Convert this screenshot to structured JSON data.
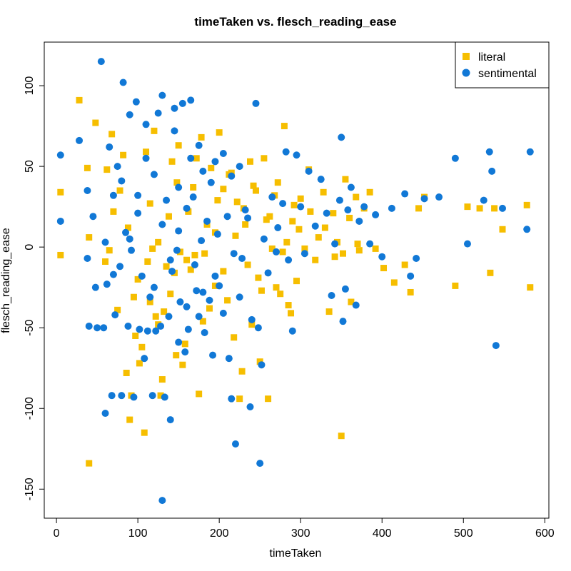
{
  "chart_data": {
    "type": "scatter",
    "title": "timeTaken vs. flesch_reading_ease",
    "xlabel": "timeTaken",
    "ylabel": "flesch_reading_ease",
    "xlim": [
      -15,
      605
    ],
    "ylim": [
      -168,
      127
    ],
    "xticks": [
      0,
      100,
      200,
      300,
      400,
      500,
      600
    ],
    "yticks": [
      -150,
      -100,
      -50,
      0,
      50,
      100
    ],
    "grid": false,
    "legend_position": "top-right",
    "series": [
      {
        "name": "literal",
        "marker": "square",
        "color": "#f6be00",
        "points": [
          [
            5,
            -5
          ],
          [
            5,
            34
          ],
          [
            28,
            91
          ],
          [
            38,
            49
          ],
          [
            40,
            -134
          ],
          [
            40,
            6
          ],
          [
            48,
            77
          ],
          [
            62,
            48
          ],
          [
            65,
            -2
          ],
          [
            68,
            70
          ],
          [
            70,
            22
          ],
          [
            78,
            35
          ],
          [
            82,
            57
          ],
          [
            86,
            -78
          ],
          [
            88,
            12
          ],
          [
            90,
            -107
          ],
          [
            95,
            -31
          ],
          [
            97,
            -55
          ],
          [
            100,
            -20
          ],
          [
            102,
            -72
          ],
          [
            108,
            -115
          ],
          [
            110,
            59
          ],
          [
            112,
            -9
          ],
          [
            115,
            27
          ],
          [
            118,
            -1
          ],
          [
            120,
            72
          ],
          [
            122,
            -43
          ],
          [
            125,
            3
          ],
          [
            128,
            -92
          ],
          [
            130,
            -82
          ],
          [
            135,
            -12
          ],
          [
            138,
            19
          ],
          [
            140,
            -29
          ],
          [
            142,
            53
          ],
          [
            145,
            -16
          ],
          [
            148,
            40
          ],
          [
            150,
            63
          ],
          [
            152,
            -3
          ],
          [
            155,
            -73
          ],
          [
            158,
            -60
          ],
          [
            162,
            22
          ],
          [
            165,
            -14
          ],
          [
            168,
            37
          ],
          [
            170,
            -5
          ],
          [
            172,
            55
          ],
          [
            175,
            -91
          ],
          [
            178,
            68
          ],
          [
            180,
            -46
          ],
          [
            185,
            14
          ],
          [
            188,
            -38
          ],
          [
            190,
            49
          ],
          [
            195,
            -24
          ],
          [
            198,
            29
          ],
          [
            200,
            71
          ],
          [
            205,
            -15
          ],
          [
            210,
            -33
          ],
          [
            215,
            46
          ],
          [
            218,
            -56
          ],
          [
            220,
            7
          ],
          [
            225,
            -94
          ],
          [
            228,
            -77
          ],
          [
            230,
            24
          ],
          [
            235,
            -11
          ],
          [
            238,
            53
          ],
          [
            240,
            -48
          ],
          [
            245,
            35
          ],
          [
            250,
            -71
          ],
          [
            252,
            -27
          ],
          [
            255,
            55
          ],
          [
            260,
            -94
          ],
          [
            262,
            19
          ],
          [
            265,
            -1
          ],
          [
            270,
            -25
          ],
          [
            272,
            40
          ],
          [
            275,
            -29
          ],
          [
            280,
            75
          ],
          [
            283,
            3
          ],
          [
            285,
            -36
          ],
          [
            288,
            -41
          ],
          [
            292,
            26
          ],
          [
            298,
            11
          ],
          [
            300,
            30
          ],
          [
            305,
            -1
          ],
          [
            310,
            48
          ],
          [
            318,
            -8
          ],
          [
            322,
            6
          ],
          [
            328,
            34
          ],
          [
            335,
            -40
          ],
          [
            340,
            21
          ],
          [
            345,
            3
          ],
          [
            350,
            -117
          ],
          [
            355,
            42
          ],
          [
            362,
            -34
          ],
          [
            368,
            31
          ],
          [
            372,
            -2
          ],
          [
            378,
            24
          ],
          [
            385,
            34
          ],
          [
            392,
            -1
          ],
          [
            402,
            -13
          ],
          [
            415,
            -22
          ],
          [
            428,
            -11
          ],
          [
            435,
            -28
          ],
          [
            445,
            24
          ],
          [
            452,
            31
          ],
          [
            490,
            -24
          ],
          [
            505,
            25
          ],
          [
            520,
            24
          ],
          [
            533,
            -16
          ],
          [
            538,
            24
          ],
          [
            548,
            11
          ],
          [
            578,
            26
          ],
          [
            582,
            -25
          ],
          [
            60,
            -9
          ],
          [
            75,
            -39
          ],
          [
            92,
            -92
          ],
          [
            105,
            -62
          ],
          [
            115,
            -34
          ],
          [
            125,
            -48
          ],
          [
            132,
            -40
          ],
          [
            147,
            -67
          ],
          [
            160,
            -8
          ],
          [
            182,
            -4
          ],
          [
            195,
            9
          ],
          [
            205,
            36
          ],
          [
            212,
            45
          ],
          [
            222,
            28
          ],
          [
            232,
            14
          ],
          [
            242,
            38
          ],
          [
            248,
            -19
          ],
          [
            258,
            17
          ],
          [
            268,
            32
          ],
          [
            278,
            -3
          ],
          [
            290,
            16
          ],
          [
            295,
            -21
          ],
          [
            312,
            22
          ],
          [
            330,
            12
          ],
          [
            342,
            -6
          ],
          [
            352,
            -4
          ],
          [
            360,
            18
          ],
          [
            370,
            2
          ]
        ]
      },
      {
        "name": "sentimental",
        "marker": "circle",
        "color": "#1178d6",
        "points": [
          [
            5,
            57
          ],
          [
            5,
            16
          ],
          [
            28,
            66
          ],
          [
            38,
            35
          ],
          [
            38,
            -7
          ],
          [
            40,
            -49
          ],
          [
            45,
            19
          ],
          [
            48,
            -25
          ],
          [
            50,
            -50
          ],
          [
            55,
            115
          ],
          [
            58,
            -50
          ],
          [
            60,
            -103
          ],
          [
            62,
            -23
          ],
          [
            65,
            62
          ],
          [
            68,
            -92
          ],
          [
            70,
            32
          ],
          [
            72,
            -42
          ],
          [
            75,
            50
          ],
          [
            78,
            -12
          ],
          [
            80,
            -92
          ],
          [
            82,
            102
          ],
          [
            85,
            9
          ],
          [
            88,
            -49
          ],
          [
            90,
            82
          ],
          [
            92,
            -2
          ],
          [
            95,
            -93
          ],
          [
            98,
            90
          ],
          [
            100,
            32
          ],
          [
            102,
            -51
          ],
          [
            105,
            -18
          ],
          [
            108,
            -69
          ],
          [
            110,
            76
          ],
          [
            112,
            -52
          ],
          [
            115,
            -31
          ],
          [
            118,
            -92
          ],
          [
            120,
            -25
          ],
          [
            122,
            -52
          ],
          [
            125,
            83
          ],
          [
            128,
            -49
          ],
          [
            130,
            94
          ],
          [
            130,
            -157
          ],
          [
            133,
            -93
          ],
          [
            135,
            29
          ],
          [
            138,
            -43
          ],
          [
            140,
            -107
          ],
          [
            142,
            -15
          ],
          [
            145,
            86
          ],
          [
            148,
            -2
          ],
          [
            150,
            -59
          ],
          [
            152,
            -34
          ],
          [
            155,
            89
          ],
          [
            158,
            -65
          ],
          [
            160,
            -37
          ],
          [
            162,
            -51
          ],
          [
            165,
            91
          ],
          [
            168,
            31
          ],
          [
            170,
            -11
          ],
          [
            172,
            -27
          ],
          [
            175,
            -43
          ],
          [
            178,
            4
          ],
          [
            180,
            -28
          ],
          [
            182,
            -53
          ],
          [
            185,
            16
          ],
          [
            188,
            -33
          ],
          [
            190,
            40
          ],
          [
            192,
            -67
          ],
          [
            195,
            -18
          ],
          [
            198,
            8
          ],
          [
            200,
            -24
          ],
          [
            205,
            -41
          ],
          [
            210,
            19
          ],
          [
            212,
            -69
          ],
          [
            215,
            -94
          ],
          [
            218,
            -4
          ],
          [
            220,
            -122
          ],
          [
            225,
            -31
          ],
          [
            228,
            -7
          ],
          [
            232,
            23
          ],
          [
            235,
            18
          ],
          [
            238,
            -99
          ],
          [
            240,
            -45
          ],
          [
            245,
            89
          ],
          [
            248,
            -50
          ],
          [
            250,
            -134
          ],
          [
            252,
            -73
          ],
          [
            255,
            5
          ],
          [
            260,
            -16
          ],
          [
            265,
            31
          ],
          [
            270,
            -3
          ],
          [
            272,
            12
          ],
          [
            278,
            27
          ],
          [
            282,
            59
          ],
          [
            285,
            -8
          ],
          [
            290,
            -52
          ],
          [
            295,
            57
          ],
          [
            300,
            25
          ],
          [
            305,
            -4
          ],
          [
            310,
            47
          ],
          [
            318,
            13
          ],
          [
            325,
            42
          ],
          [
            332,
            21
          ],
          [
            338,
            -30
          ],
          [
            342,
            2
          ],
          [
            348,
            29
          ],
          [
            350,
            68
          ],
          [
            352,
            -46
          ],
          [
            355,
            -26
          ],
          [
            358,
            23
          ],
          [
            362,
            37
          ],
          [
            368,
            -36
          ],
          [
            372,
            16
          ],
          [
            378,
            25
          ],
          [
            385,
            2
          ],
          [
            392,
            20
          ],
          [
            400,
            -6
          ],
          [
            412,
            24
          ],
          [
            428,
            33
          ],
          [
            435,
            -18
          ],
          [
            442,
            -7
          ],
          [
            452,
            30
          ],
          [
            470,
            31
          ],
          [
            490,
            55
          ],
          [
            505,
            2
          ],
          [
            525,
            29
          ],
          [
            532,
            59
          ],
          [
            535,
            47
          ],
          [
            540,
            -61
          ],
          [
            548,
            24
          ],
          [
            578,
            11
          ],
          [
            582,
            59
          ],
          [
            145,
            72
          ],
          [
            165,
            55
          ],
          [
            175,
            63
          ],
          [
            180,
            47
          ],
          [
            195,
            53
          ],
          [
            205,
            58
          ],
          [
            215,
            44
          ],
          [
            225,
            50
          ],
          [
            160,
            24
          ],
          [
            150,
            10
          ],
          [
            140,
            -8
          ],
          [
            130,
            14
          ],
          [
            120,
            45
          ],
          [
            110,
            55
          ],
          [
            100,
            21
          ],
          [
            90,
            5
          ],
          [
            80,
            41
          ],
          [
            70,
            -17
          ],
          [
            60,
            3
          ],
          [
            150,
            37
          ]
        ]
      }
    ]
  }
}
